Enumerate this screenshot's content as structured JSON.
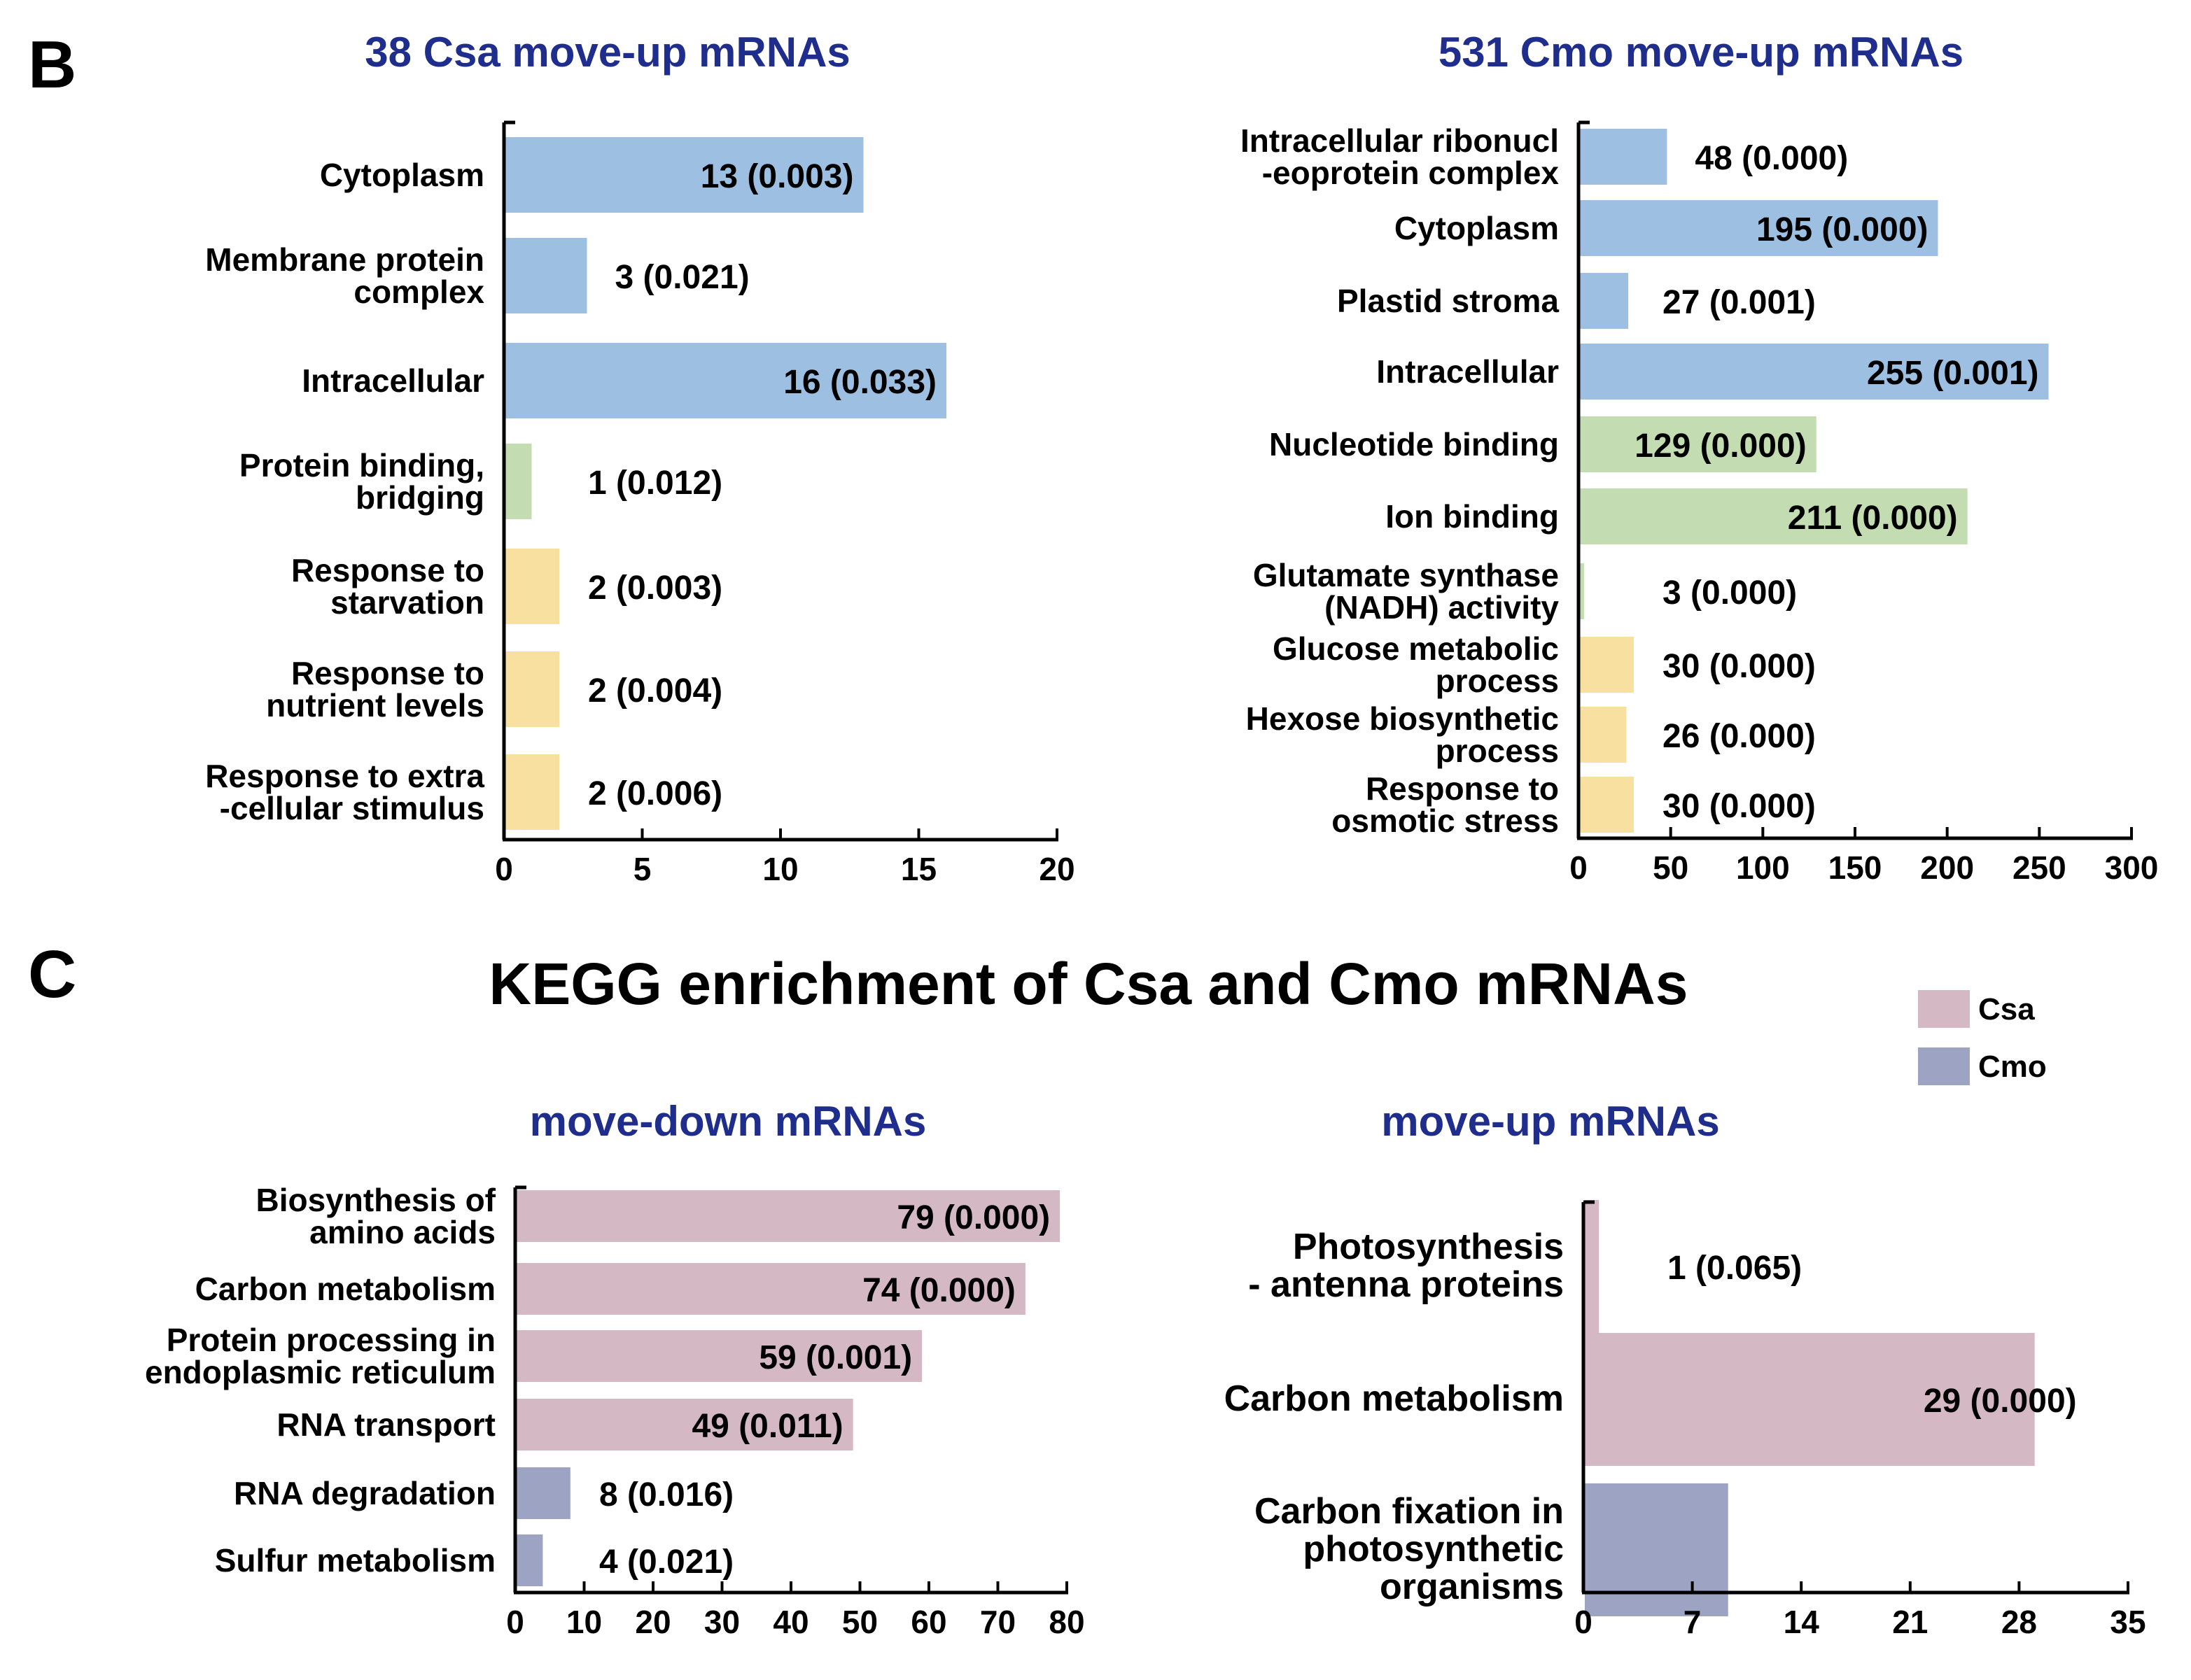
{
  "panels": {
    "B": "B",
    "C": "C"
  },
  "main_title": "KEGG enrichment of  Csa and Cmo mRNAs",
  "legend": [
    {
      "label": "Csa",
      "color": "#d4b8c4"
    },
    {
      "label": "Cmo",
      "color": "#9da3c2"
    }
  ],
  "colors": {
    "title_blue": "#1f2d8c",
    "cellular_component": "#9dbfe1",
    "molecular_function": "#c3dcb1",
    "biological_process": "#f8e0a0",
    "csa": "#d4b8c4",
    "cmo": "#9da3c2"
  },
  "chart_data": [
    {
      "id": "go_csa_up",
      "type": "bar",
      "orientation": "horizontal",
      "title": "38 Csa move-up mRNAs",
      "categories": [
        [
          "Cytoplasm"
        ],
        [
          "Membrane protein",
          "complex"
        ],
        [
          "Intracellular"
        ],
        [
          "Protein binding,",
          "bridging"
        ],
        [
          "Response to",
          "starvation"
        ],
        [
          "Response to",
          "nutrient levels"
        ],
        [
          "Response to extra",
          "-cellular stimulus"
        ]
      ],
      "values": [
        13,
        3,
        16,
        1,
        2,
        2,
        2
      ],
      "labels": [
        "13 (0.003)",
        "3 (0.021)",
        "16 (0.033)",
        "1 (0.012)",
        "2 (0.003)",
        "2 (0.004)",
        "2 (0.006)"
      ],
      "groups": [
        "cellular_component",
        "cellular_component",
        "cellular_component",
        "molecular_function",
        "biological_process",
        "biological_process",
        "biological_process"
      ],
      "xlim": [
        0,
        20
      ],
      "xticks": [
        0,
        5,
        10,
        15,
        20
      ]
    },
    {
      "id": "go_cmo_up",
      "type": "bar",
      "orientation": "horizontal",
      "title": "531 Cmo move-up mRNAs",
      "categories": [
        [
          "Intracellular ribonucl",
          "-eoprotein complex"
        ],
        [
          "Cytoplasm"
        ],
        [
          "Plastid stroma"
        ],
        [
          "Intracellular"
        ],
        [
          "Nucleotide binding"
        ],
        [
          "Ion binding"
        ],
        [
          "Glutamate synthase",
          "(NADH) activity"
        ],
        [
          "Glucose metabolic",
          "process"
        ],
        [
          "Hexose biosynthetic",
          "process"
        ],
        [
          "Response to",
          "osmotic stress"
        ]
      ],
      "values": [
        48,
        195,
        27,
        255,
        129,
        211,
        3,
        30,
        26,
        30
      ],
      "labels": [
        "48 (0.000)",
        "195 (0.000)",
        "27 (0.001)",
        "255 (0.001)",
        "129 (0.000)",
        "211 (0.000)",
        "3 (0.000)",
        "30 (0.000)",
        "26 (0.000)",
        "30 (0.000)"
      ],
      "groups": [
        "cellular_component",
        "cellular_component",
        "cellular_component",
        "cellular_component",
        "molecular_function",
        "molecular_function",
        "molecular_function",
        "biological_process",
        "biological_process",
        "biological_process"
      ],
      "xlim": [
        0,
        300
      ],
      "xticks": [
        0,
        50,
        100,
        150,
        200,
        250,
        300
      ]
    },
    {
      "id": "kegg_down",
      "type": "bar",
      "orientation": "horizontal",
      "title": "move-down mRNAs",
      "categories": [
        [
          "Biosynthesis of",
          "amino acids"
        ],
        [
          "Carbon metabolism"
        ],
        [
          "Protein processing in",
          "endoplasmic reticulum"
        ],
        [
          "RNA transport"
        ],
        [
          "RNA degradation"
        ],
        [
          "Sulfur metabolism"
        ]
      ],
      "values": [
        79,
        74,
        59,
        49,
        8,
        4
      ],
      "labels": [
        "79 (0.000)",
        "74 (0.000)",
        "59 (0.001)",
        "49 (0.011)",
        "8 (0.016)",
        "4 (0.021)"
      ],
      "groups": [
        "csa",
        "csa",
        "csa",
        "csa",
        "cmo",
        "cmo"
      ],
      "xlim": [
        0,
        80
      ],
      "xticks": [
        0,
        10,
        20,
        30,
        40,
        50,
        60,
        70,
        80
      ]
    },
    {
      "id": "kegg_up",
      "type": "bar",
      "orientation": "horizontal",
      "title": "move-up mRNAs",
      "categories": [
        [
          "Photosynthesis",
          "- antenna proteins"
        ],
        [
          "Carbon metabolism"
        ],
        [
          "Carbon fixation in",
          "photosynthetic",
          "organisms"
        ]
      ],
      "values": [
        1,
        29,
        9.3
      ],
      "labels": [
        "1 (0.065)",
        "29 (0.000)",
        ""
      ],
      "groups": [
        "csa",
        "csa",
        "cmo"
      ],
      "xlim": [
        0,
        35
      ],
      "xticks": [
        0,
        7,
        14,
        21,
        28,
        35
      ]
    }
  ]
}
